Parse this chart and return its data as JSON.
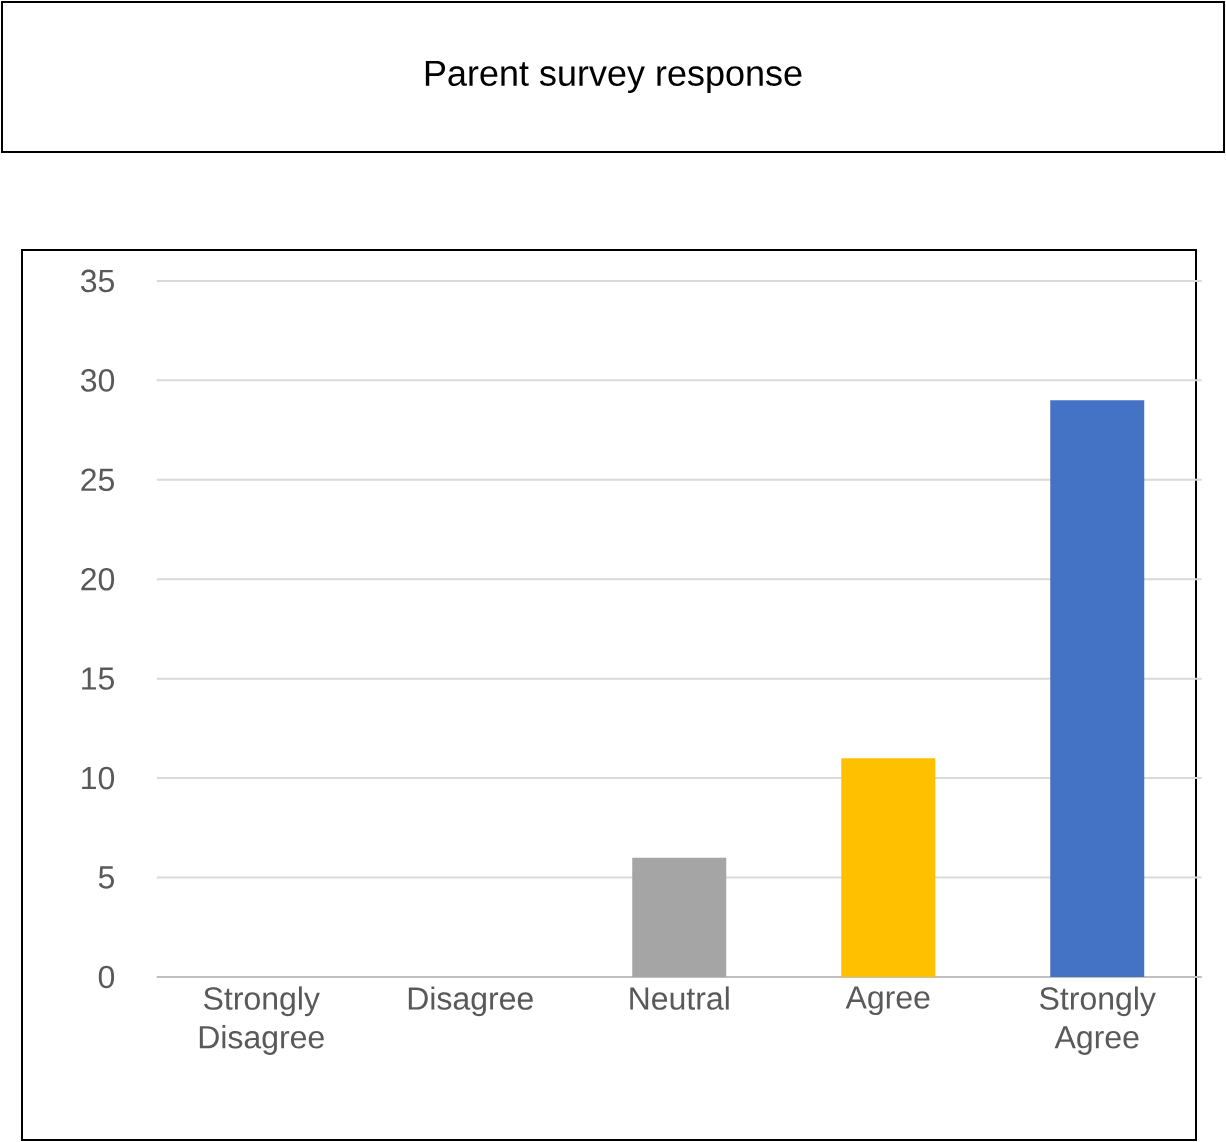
{
  "chart_data": {
    "type": "bar",
    "title": "Parent survey response",
    "categories": [
      "Strongly Disagree",
      "Disagree",
      "Neutral",
      "Agree",
      "Strongly Agree"
    ],
    "values": [
      0,
      0,
      6,
      11,
      29
    ],
    "colors": [
      "#4472c4",
      "#ed7d31",
      "#a5a5a5",
      "#ffc000",
      "#4472c4"
    ],
    "ylim": [
      0,
      35
    ],
    "yticks": [
      0,
      5,
      10,
      15,
      20,
      25,
      30,
      35
    ],
    "grid": "y"
  }
}
